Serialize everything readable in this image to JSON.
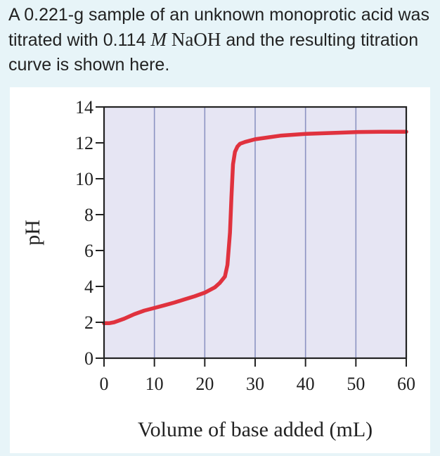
{
  "question": {
    "prefix": "A 0.221-g sample of an unknown monoprotic acid was titrated with 0.114 ",
    "unit_symbol": "M",
    "reagent": "NaOH",
    "suffix": " and the resulting titration curve is shown here."
  },
  "chart_data": {
    "type": "line",
    "xlabel": "Volume of base added (mL)",
    "ylabel": "pH",
    "xlim": [
      0,
      60
    ],
    "ylim": [
      0,
      14
    ],
    "xticks": [
      0,
      10,
      20,
      30,
      40,
      50,
      60
    ],
    "yticks": [
      0,
      2,
      4,
      6,
      8,
      10,
      12,
      14
    ],
    "grid": "vertical",
    "series": [
      {
        "color": "#e0323e",
        "x": [
          0,
          1,
          2,
          4,
          6,
          8,
          10,
          12,
          14,
          16,
          18,
          20,
          22,
          23,
          24,
          24.5,
          25,
          25.3,
          25.6,
          26,
          26.5,
          27,
          28,
          30,
          35,
          40,
          45,
          50,
          55,
          60
        ],
        "y": [
          1.95,
          1.95,
          2.0,
          2.2,
          2.45,
          2.65,
          2.8,
          2.95,
          3.1,
          3.28,
          3.45,
          3.65,
          3.95,
          4.2,
          4.55,
          5.2,
          7.0,
          9.0,
          10.8,
          11.5,
          11.8,
          11.95,
          12.05,
          12.2,
          12.4,
          12.5,
          12.55,
          12.6,
          12.62,
          12.62
        ]
      }
    ],
    "colors": {
      "plot_bg": "#e6e5f3",
      "grid": "#8c93c2",
      "axis": "#222222"
    }
  }
}
